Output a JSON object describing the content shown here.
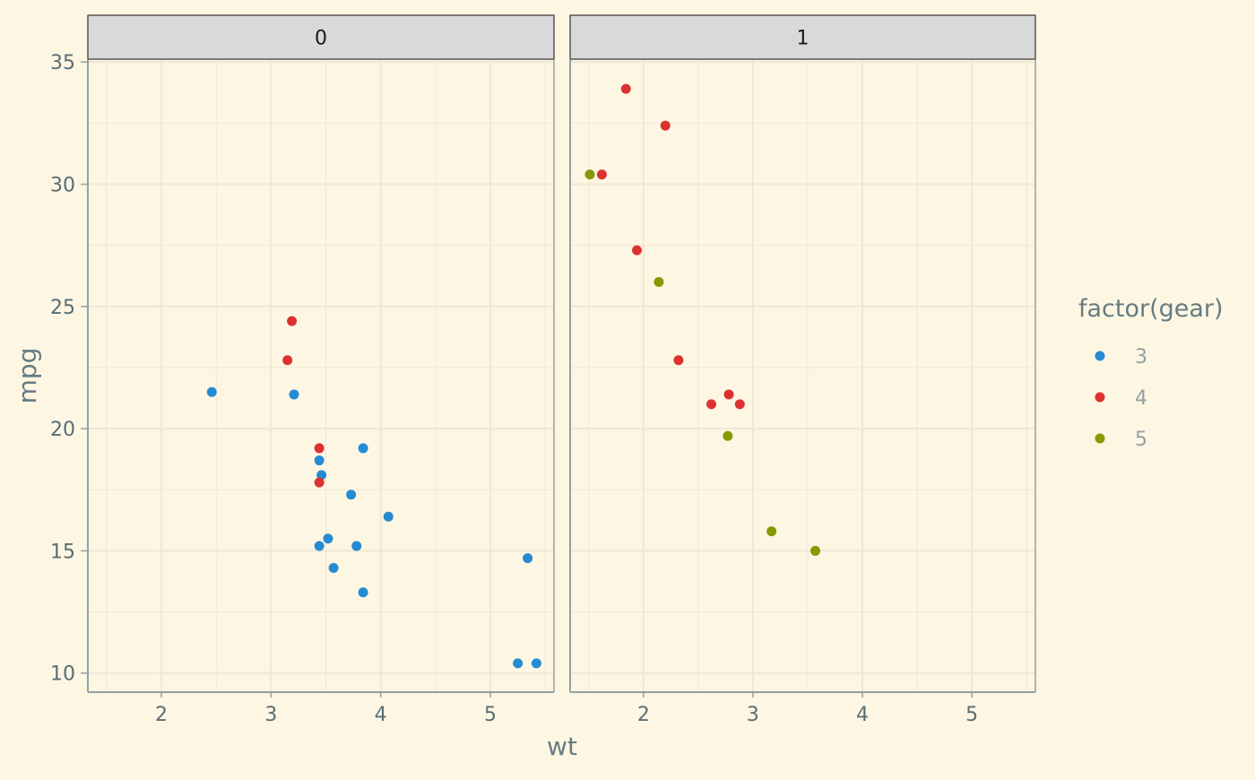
{
  "chart_data": {
    "type": "scatter",
    "xlabel": "wt",
    "ylabel": "mpg",
    "xlim": [
      1.33,
      5.58
    ],
    "ylim": [
      9.22,
      35.08
    ],
    "x_ticks": [
      2,
      3,
      4,
      5
    ],
    "y_ticks": [
      10,
      15,
      20,
      25,
      30,
      35
    ],
    "grid": true,
    "legend": {
      "title": "factor(gear)",
      "placement": "right",
      "entries": [
        {
          "label": "3",
          "color": "#268bd2"
        },
        {
          "label": "4",
          "color": "#dc322f"
        },
        {
          "label": "5",
          "color": "#859900"
        }
      ]
    },
    "facets": [
      {
        "label": "0",
        "points": [
          {
            "x": 2.46,
            "y": 21.5,
            "gear": "3"
          },
          {
            "x": 3.21,
            "y": 21.4,
            "gear": "3"
          },
          {
            "x": 3.44,
            "y": 18.7,
            "gear": "3"
          },
          {
            "x": 3.46,
            "y": 18.1,
            "gear": "3"
          },
          {
            "x": 3.73,
            "y": 17.3,
            "gear": "3"
          },
          {
            "x": 3.84,
            "y": 19.2,
            "gear": "3"
          },
          {
            "x": 4.07,
            "y": 16.4,
            "gear": "3"
          },
          {
            "x": 3.44,
            "y": 15.2,
            "gear": "3"
          },
          {
            "x": 3.52,
            "y": 15.5,
            "gear": "3"
          },
          {
            "x": 3.78,
            "y": 15.2,
            "gear": "3"
          },
          {
            "x": 3.57,
            "y": 14.3,
            "gear": "3"
          },
          {
            "x": 3.84,
            "y": 13.3,
            "gear": "3"
          },
          {
            "x": 5.34,
            "y": 14.7,
            "gear": "3"
          },
          {
            "x": 5.25,
            "y": 10.4,
            "gear": "3"
          },
          {
            "x": 5.42,
            "y": 10.4,
            "gear": "3"
          },
          {
            "x": 3.19,
            "y": 24.4,
            "gear": "4"
          },
          {
            "x": 3.15,
            "y": 22.8,
            "gear": "4"
          },
          {
            "x": 3.44,
            "y": 19.2,
            "gear": "4"
          },
          {
            "x": 3.44,
            "y": 17.8,
            "gear": "4"
          }
        ]
      },
      {
        "label": "1",
        "points": [
          {
            "x": 1.84,
            "y": 33.9,
            "gear": "4"
          },
          {
            "x": 2.2,
            "y": 32.4,
            "gear": "4"
          },
          {
            "x": 1.62,
            "y": 30.4,
            "gear": "4"
          },
          {
            "x": 1.94,
            "y": 27.3,
            "gear": "4"
          },
          {
            "x": 2.32,
            "y": 22.8,
            "gear": "4"
          },
          {
            "x": 2.62,
            "y": 21.0,
            "gear": "4"
          },
          {
            "x": 2.78,
            "y": 21.4,
            "gear": "4"
          },
          {
            "x": 2.88,
            "y": 21.0,
            "gear": "4"
          },
          {
            "x": 1.51,
            "y": 30.4,
            "gear": "5"
          },
          {
            "x": 2.14,
            "y": 26.0,
            "gear": "5"
          },
          {
            "x": 2.77,
            "y": 19.7,
            "gear": "5"
          },
          {
            "x": 3.17,
            "y": 15.8,
            "gear": "5"
          },
          {
            "x": 3.57,
            "y": 15.0,
            "gear": "5"
          }
        ]
      }
    ]
  },
  "colors": {
    "background": "#fdf6e3",
    "strip_fill": "#d9d9d9",
    "grid_major": "#eee8d5",
    "axis_line": "#93a1a1",
    "axis_title": "#657b83",
    "tick_label": "#586e75",
    "legend_label": "#93a1a1"
  }
}
